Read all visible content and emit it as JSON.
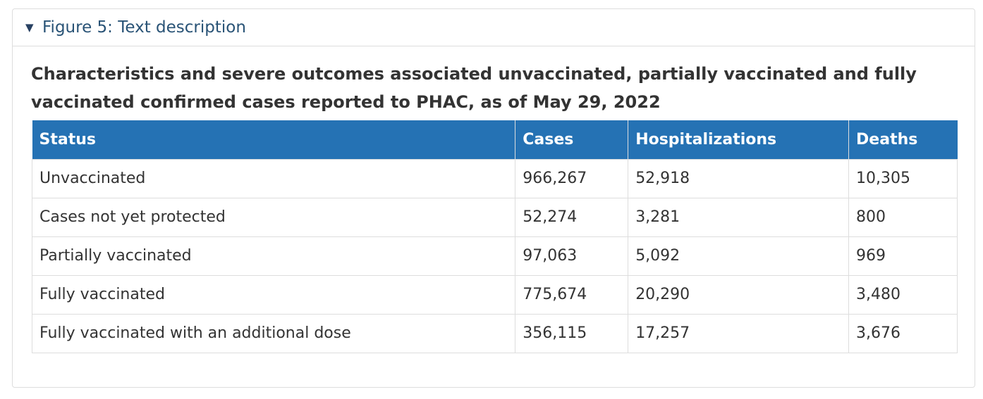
{
  "summary": {
    "toggle_icon": "triangle-down-icon",
    "label": "Figure 5: Text description"
  },
  "caption": "Characteristics and severe outcomes associated unvaccinated, partially vaccinated and fully vaccinated confirmed cases reported to PHAC, as of May 29, 2022",
  "table": {
    "headers": [
      "Status",
      "Cases",
      "Hospitalizations",
      "Deaths"
    ],
    "rows": [
      [
        "Unvaccinated",
        "966,267",
        "52,918",
        "10,305"
      ],
      [
        "Cases not yet protected",
        "52,274",
        "3,281",
        "800"
      ],
      [
        "Partially vaccinated",
        "97,063",
        "5,092",
        "969"
      ],
      [
        "Fully vaccinated",
        "775,674",
        "20,290",
        "3,480"
      ],
      [
        "Fully vaccinated with an additional dose",
        "356,115",
        "17,257",
        "3,676"
      ]
    ]
  },
  "colors": {
    "header_bg": "#2572b4",
    "link": "#295376",
    "border": "#dddddd"
  }
}
